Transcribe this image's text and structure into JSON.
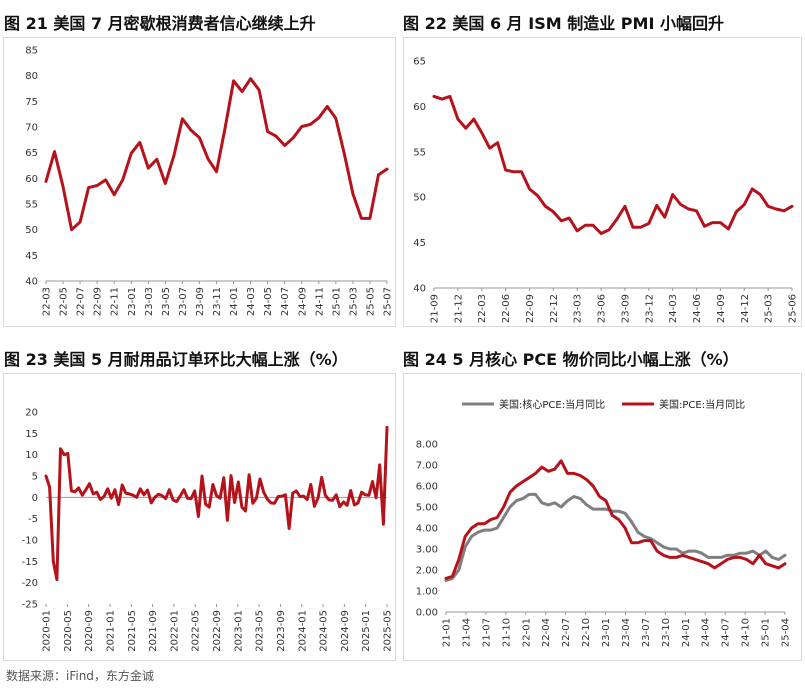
{
  "titles": {
    "t21": "图 21  美国 7 月密歇根消费者信心继续上升",
    "t22": "图 22  美国 6 月 ISM 制造业 PMI 小幅回升",
    "t23": "图 23  美国 5 月耐用品订单环比大幅上涨（%）",
    "t24": "图 24  5 月核心 PCE 物价同比小幅上涨（%）"
  },
  "source": "数据来源：iFind，东方金诚",
  "colors": {
    "red": "#b5121b",
    "gray": "#7f7f7f",
    "axis": "#999999"
  },
  "chart_data": [
    {
      "id": "c21",
      "type": "line",
      "title": "美国 7 月密歇根消费者信心继续上升",
      "ylim": [
        40,
        85
      ],
      "yticks": [
        "40",
        "45",
        "50",
        "55",
        "60",
        "65",
        "70",
        "75",
        "80",
        "85"
      ],
      "xlabels": [
        "22-03",
        "22-05",
        "22-07",
        "22-09",
        "22-11",
        "23-01",
        "23-03",
        "23-05",
        "23-07",
        "23-09",
        "23-11",
        "24-01",
        "24-03",
        "24-05",
        "24-07",
        "24-09",
        "24-11",
        "25-01",
        "25-03",
        "25-05",
        "25-07"
      ],
      "series": [
        {
          "color": "red",
          "values": [
            59.4,
            65.2,
            58.4,
            50.0,
            51.5,
            58.2,
            58.6,
            59.7,
            56.8,
            59.7,
            64.9,
            67.0,
            62.0,
            63.7,
            59.0,
            64.4,
            71.6,
            69.4,
            67.9,
            63.8,
            61.3,
            69.7,
            79.0,
            76.9,
            79.4,
            77.2,
            69.1,
            68.2,
            66.4,
            67.9,
            70.1,
            70.5,
            71.8,
            74.0,
            71.7,
            64.7,
            57.0,
            52.2,
            52.2,
            60.7,
            61.8
          ]
        }
      ]
    },
    {
      "id": "c22",
      "type": "line",
      "title": "美国 6 月 ISM 制造业 PMI 小幅回升",
      "ylim": [
        40,
        65
      ],
      "yticks": [
        "40",
        "45",
        "50",
        "55",
        "60",
        "65"
      ],
      "xlabels": [
        "21-09",
        "21-12",
        "22-03",
        "22-06",
        "22-09",
        "22-12",
        "23-03",
        "23-06",
        "23-09",
        "23-12",
        "24-03",
        "24-06",
        "24-09",
        "24-12",
        "25-03",
        "25-06"
      ],
      "series": [
        {
          "color": "red",
          "values": [
            61.1,
            60.8,
            61.1,
            58.6,
            57.6,
            58.6,
            57.1,
            55.4,
            56.0,
            53.0,
            52.8,
            52.8,
            50.9,
            50.2,
            49.0,
            48.4,
            47.4,
            47.7,
            46.3,
            46.9,
            46.9,
            46.0,
            46.4,
            47.6,
            49.0,
            46.7,
            46.7,
            47.1,
            49.1,
            47.8,
            50.3,
            49.2,
            48.7,
            48.5,
            46.8,
            47.2,
            47.2,
            46.5,
            48.4,
            49.2,
            50.9,
            50.3,
            49.0,
            48.7,
            48.5,
            49.0
          ]
        }
      ]
    },
    {
      "id": "c23",
      "type": "line",
      "title": "美国 5 月耐用品订单环比大幅上涨（%）",
      "ylim": [
        -25,
        20
      ],
      "yticks": [
        "-25",
        "-20",
        "-15",
        "-10",
        "-5",
        "0",
        "5",
        "10",
        "15",
        "20"
      ],
      "xlabels": [
        "2020-01",
        "2020-05",
        "2020-09",
        "2021-01",
        "2021-05",
        "2021-09",
        "2022-01",
        "2022-05",
        "2022-09",
        "2023-01",
        "2023-05",
        "2023-09",
        "2024-01",
        "2024-05",
        "2024-09",
        "2025-01",
        "2025-05"
      ],
      "series": [
        {
          "color": "red",
          "values": [
            5.0,
            2.4,
            -15.0,
            -19.3,
            11.4,
            10.0,
            10.3,
            1.5,
            1.3,
            2.2,
            0.5,
            1.8,
            3.2,
            0.8,
            1.2,
            -0.5,
            0.2,
            2.0,
            -0.2,
            1.8,
            -1.7,
            2.9,
            1.0,
            0.8,
            0.5,
            0.0,
            2.0,
            0.6,
            1.7,
            -1.3,
            0.0,
            0.7,
            0.4,
            -0.3,
            1.8,
            -0.6,
            -1.0,
            0.3,
            1.8,
            -0.2,
            -0.3,
            1.5,
            -4.5,
            5.0,
            -1.6,
            -2.3,
            3.0,
            0.4,
            -0.2,
            4.6,
            -5.4,
            5.1,
            -1.2,
            3.6,
            -2.3,
            -3.2,
            5.3,
            -1.4,
            -0.2,
            4.3,
            1.2,
            -0.4,
            -1.3,
            -1.4,
            0.2,
            0.3,
            0.6,
            -7.3,
            1.0,
            1.5,
            0.2,
            0.3,
            -0.5,
            3.0,
            -2.1,
            -0.1,
            4.7,
            0.5,
            -0.6,
            -0.7,
            0.6,
            -2.2,
            -1.1,
            -1.9,
            1.6,
            -1.8,
            -1.3,
            1.2,
            0.6,
            0.5,
            3.7,
            -0.1,
            7.6,
            -6.3,
            16.4
          ]
        }
      ]
    },
    {
      "id": "c24",
      "type": "line",
      "title": "5 月核心 PCE 物价同比小幅上涨（%）",
      "ylim": [
        0,
        8
      ],
      "yticks": [
        "0.00",
        "1.00",
        "2.00",
        "3.00",
        "4.00",
        "5.00",
        "6.00",
        "7.00",
        "8.00"
      ],
      "xlabels": [
        "21-01",
        "21-04",
        "21-07",
        "21-10",
        "22-01",
        "22-04",
        "22-07",
        "22-10",
        "23-01",
        "23-04",
        "23-07",
        "23-10",
        "24-01",
        "24-04",
        "24-07",
        "24-10",
        "25-01",
        "25-04"
      ],
      "legend": [
        "美国:核心PCE:当月同比",
        "美国:PCE:当月同比"
      ],
      "series": [
        {
          "name": "美国:核心PCE:当月同比",
          "color": "gray",
          "values": [
            1.5,
            1.6,
            2.0,
            3.1,
            3.6,
            3.8,
            3.9,
            3.9,
            4.0,
            4.5,
            5.0,
            5.3,
            5.4,
            5.6,
            5.6,
            5.2,
            5.1,
            5.2,
            5.0,
            5.3,
            5.5,
            5.4,
            5.1,
            4.9,
            4.9,
            4.9,
            4.8,
            4.8,
            4.7,
            4.3,
            3.8,
            3.6,
            3.5,
            3.3,
            3.1,
            3.0,
            3.0,
            2.8,
            2.9,
            2.9,
            2.8,
            2.6,
            2.6,
            2.6,
            2.7,
            2.7,
            2.8,
            2.8,
            2.9,
            2.7,
            2.9,
            2.6,
            2.5,
            2.7
          ]
        },
        {
          "name": "美国:PCE:当月同比",
          "color": "red",
          "values": [
            1.6,
            1.7,
            2.5,
            3.6,
            4.0,
            4.2,
            4.2,
            4.4,
            4.5,
            5.0,
            5.7,
            6.0,
            6.2,
            6.4,
            6.6,
            6.9,
            6.7,
            6.8,
            7.2,
            6.6,
            6.6,
            6.5,
            6.3,
            6.0,
            5.5,
            5.3,
            4.6,
            4.4,
            4.0,
            3.3,
            3.3,
            3.4,
            3.4,
            2.9,
            2.7,
            2.6,
            2.6,
            2.7,
            2.6,
            2.5,
            2.4,
            2.3,
            2.1,
            2.3,
            2.5,
            2.6,
            2.6,
            2.5,
            2.3,
            2.7,
            2.3,
            2.2,
            2.1,
            2.3
          ]
        }
      ]
    }
  ]
}
